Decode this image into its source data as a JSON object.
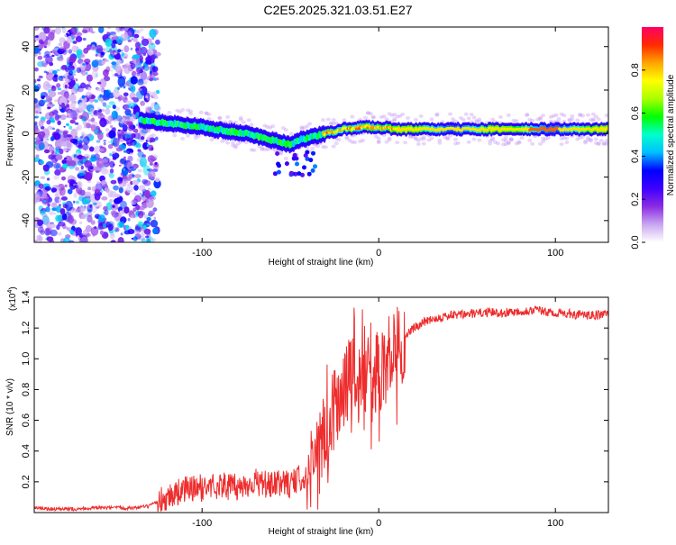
{
  "title": "C2E5.2025.321.03.51.E27",
  "chart_data": [
    {
      "type": "heatmap",
      "xlabel": "Height of straight line (km)",
      "ylabel": "Frequency (Hz)",
      "xlim": [
        -195,
        130
      ],
      "ylim": [
        -50,
        49
      ],
      "xticks": [
        -100,
        0,
        100
      ],
      "yticks": [
        -40,
        -20,
        0,
        20,
        40
      ],
      "colorbar": {
        "label": "Normalized spectral amplitude",
        "range": [
          0,
          1
        ],
        "ticks": [
          "0.0",
          "0.2",
          "0.4",
          "0.6",
          "0.8"
        ],
        "colors": [
          "#ffffff",
          "#c9a6f0",
          "#8a2be2",
          "#3f00ff",
          "#0000ff",
          "#00bfff",
          "#00ffcc",
          "#00ff00",
          "#aaff00",
          "#ffff00",
          "#ffa500",
          "#ff2a00",
          "#ff0066"
        ]
      },
      "ridge": {
        "x": [
          -135,
          -120,
          -100,
          -85,
          -75,
          -65,
          -55,
          -50,
          -45,
          -40,
          -30,
          -20,
          -10,
          0,
          10,
          30,
          50,
          80,
          100,
          130
        ],
        "y": [
          6,
          5,
          3,
          1,
          0,
          -2,
          -4,
          -5,
          -3,
          -2,
          0,
          2,
          3,
          3,
          2,
          2,
          2,
          2,
          2,
          2
        ]
      }
    },
    {
      "type": "line",
      "xlabel": "Height of straight line (km)",
      "ylabel": "SNR (10 * v/v)",
      "multiplier_label": "(x10",
      "multiplier_exp": "4",
      "xlim": [
        -195,
        130
      ],
      "ylim": [
        0,
        1.4
      ],
      "xticks": [
        -100,
        0,
        100
      ],
      "yticks": [
        0.2,
        0.4,
        0.6,
        0.8,
        1.0,
        1.2,
        1.4
      ],
      "ytick_labels": [
        "0.2",
        "0.4",
        "0.6",
        "0.8",
        "1.0",
        "1.2",
        "1.4"
      ],
      "color": "#ee2c2c",
      "series": {
        "x": [
          -195,
          -180,
          -160,
          -140,
          -130,
          -120,
          -110,
          -100,
          -90,
          -80,
          -70,
          -60,
          -55,
          -50,
          -45,
          -40,
          -35,
          -30,
          -25,
          -20,
          -15,
          -12,
          -8,
          -5,
          0,
          5,
          10,
          15,
          20,
          25,
          30,
          40,
          50,
          60,
          70,
          80,
          90,
          95,
          100,
          110,
          120,
          130
        ],
        "y": [
          0.03,
          0.02,
          0.03,
          0.03,
          0.04,
          0.1,
          0.15,
          0.16,
          0.18,
          0.16,
          0.2,
          0.17,
          0.2,
          0.18,
          0.22,
          0.25,
          0.35,
          0.5,
          0.65,
          0.78,
          0.9,
          0.85,
          0.95,
          0.82,
          0.92,
          1.0,
          1.05,
          1.15,
          1.2,
          1.24,
          1.26,
          1.28,
          1.29,
          1.3,
          1.3,
          1.31,
          1.32,
          1.3,
          1.3,
          1.29,
          1.28,
          1.29
        ]
      }
    }
  ]
}
